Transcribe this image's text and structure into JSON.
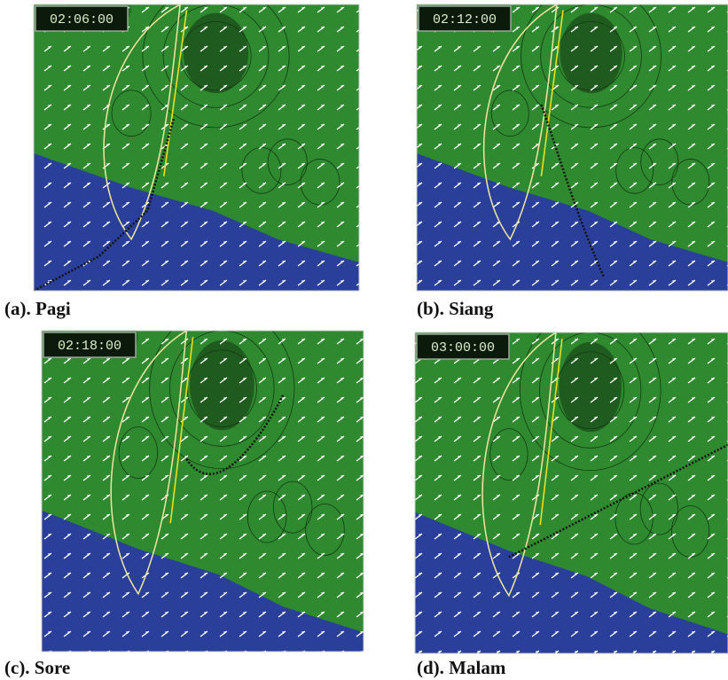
{
  "panels": [
    {
      "timestamp": "02:06:00",
      "caption": "(a). Pagi"
    },
    {
      "timestamp": "02:12:00",
      "caption": "(b). Siang"
    },
    {
      "timestamp": "02:18:00",
      "caption": "(c). Sore"
    },
    {
      "timestamp": "03:00:00",
      "caption": "(d). Malam"
    }
  ]
}
